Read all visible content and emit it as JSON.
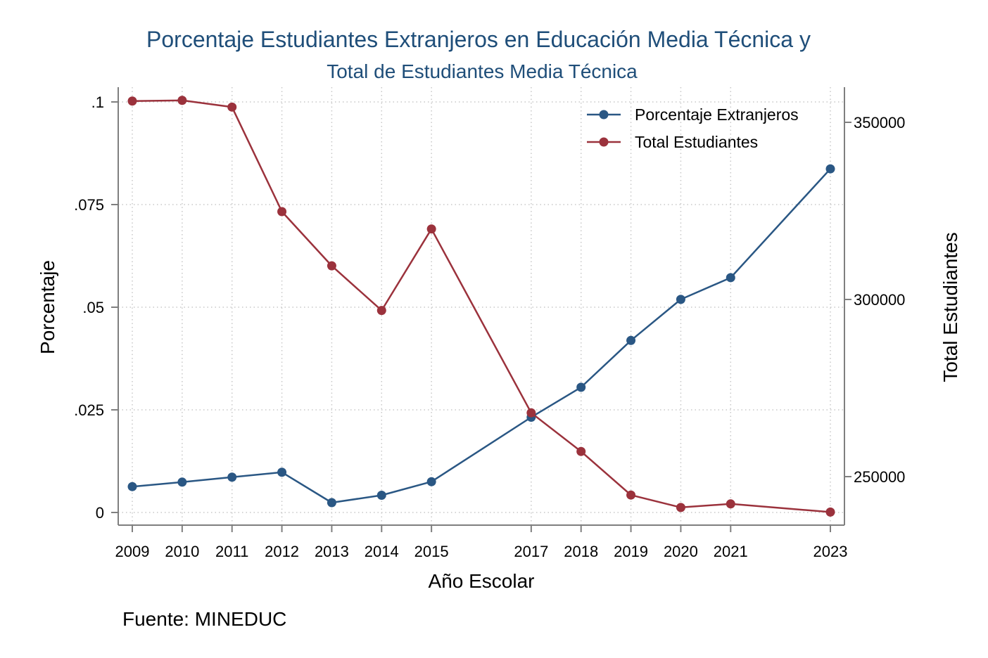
{
  "chart_data": {
    "type": "line",
    "title": "Porcentaje Estudiantes Extranjeros en Educación Media Técnica y",
    "subtitle": "Total de Estudiantes Media Técnica",
    "xlabel": "Año Escolar",
    "ylabel_left": "Porcentaje",
    "ylabel_right": "Total Estudiantes",
    "note": "Fuente: MINEDUC",
    "x": [
      2009,
      2010,
      2011,
      2012,
      2013,
      2014,
      2015,
      2017,
      2018,
      2019,
      2020,
      2021,
      2023
    ],
    "x_tick_labels": [
      "2009",
      "2010",
      "2011",
      "2012",
      "2013",
      "2014",
      "2015",
      "2017",
      "2018",
      "2019",
      "2020",
      "2021",
      "2023"
    ],
    "y_left_ticks": [
      0,
      0.025,
      0.05,
      0.075,
      0.1
    ],
    "y_left_tick_labels": [
      "0",
      ".025",
      ".05",
      ".075",
      ".1"
    ],
    "y_left_range": [
      0,
      0.1
    ],
    "y_right_ticks": [
      250000,
      300000,
      350000
    ],
    "y_right_tick_labels": [
      "250000",
      "300000",
      "350000"
    ],
    "y_right_range": [
      240000,
      356000
    ],
    "legend_position": "top-right",
    "grid": true,
    "series": [
      {
        "name": "Porcentaje Extranjeros",
        "axis": "left",
        "color": "#2a5784",
        "values": [
          0.0063,
          0.0074,
          0.0086,
          0.0098,
          0.0024,
          0.0042,
          0.0075,
          0.0232,
          0.0305,
          0.0419,
          0.0519,
          0.0572,
          0.0837
        ]
      },
      {
        "name": "Total Estudiantes",
        "axis": "right",
        "color": "#9b323c",
        "values": [
          356000,
          356200,
          354300,
          324800,
          309500,
          296900,
          319900,
          268000,
          257100,
          244800,
          241300,
          242300,
          240000
        ]
      }
    ]
  }
}
